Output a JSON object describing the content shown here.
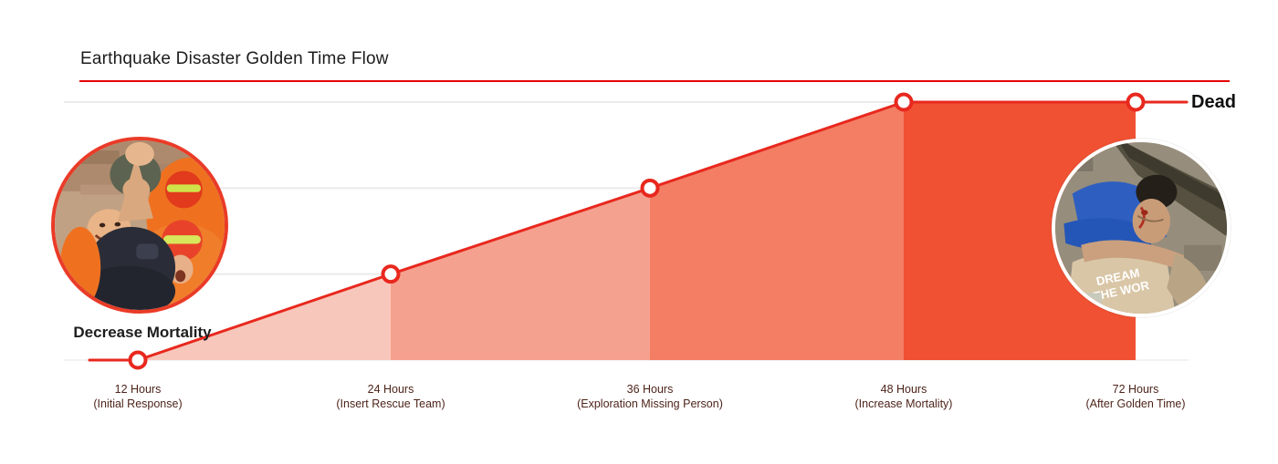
{
  "header": {
    "title": "Earthquake Disaster Golden Time Flow",
    "underline_color": "#e60000"
  },
  "chart_data": {
    "type": "area",
    "title": "Earthquake Disaster Golden Time Flow",
    "categories": [
      {
        "line1": "12 Hours",
        "line2": "(Initial Response)"
      },
      {
        "line1": "24 Hours",
        "line2": "(Insert Rescue Team)"
      },
      {
        "line1": "36 Hours",
        "line2": "(Exploration Missing Person)"
      },
      {
        "line1": "48 Hours",
        "line2": "(Increase Mortality)"
      },
      {
        "line1": "72 Hours",
        "line2": "(After Golden Time)"
      }
    ],
    "values": [
      0,
      1,
      2,
      3,
      3
    ],
    "ylim": [
      0,
      3
    ],
    "xlabel": "",
    "ylabel": "",
    "grid": true,
    "legend": "none",
    "start_annotation": "Decrease Mortality",
    "end_annotation": "Dead",
    "segment_colors": [
      "#f8c7bb",
      "#f5a18f",
      "#f37e64",
      "#f05133"
    ],
    "line_color": "#e8281e",
    "grid_color": "#ebebeb",
    "axis_label_color": "#4d241a"
  },
  "photos": {
    "right_shirt_line1": "DREAM",
    "right_shirt_line2": "THE WOR"
  }
}
